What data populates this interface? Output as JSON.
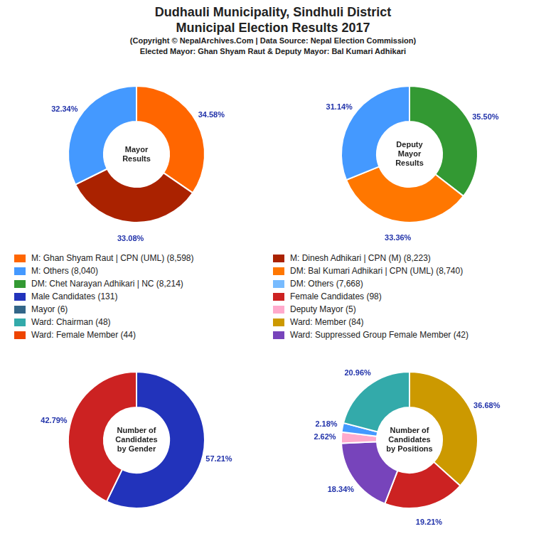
{
  "title": [
    "Dudhauli Municipality, Sindhuli District",
    "Municipal Election Results 2017"
  ],
  "subtitle": [
    "(Copyright © NepalArchives.Com | Data Source: Nepal Election Commission)",
    "Elected Mayor: Ghan Shyam Raut & Deputy Mayor: Bal Kumari Adhikari"
  ],
  "chart_data": [
    {
      "type": "doughnut",
      "title": "Mayor\nResults",
      "values": [
        34.58,
        33.08,
        32.34
      ],
      "value_labels": [
        "34.58%",
        "33.08%",
        "32.34%"
      ],
      "colors": [
        "#ff6600",
        "#aa2200",
        "#4499ff"
      ],
      "data_labels": true,
      "legend": false
    },
    {
      "type": "doughnut",
      "title": "Deputy\nMayor\nResults",
      "values": [
        35.5,
        33.36,
        31.14
      ],
      "value_labels": [
        "35.50%",
        "33.36%",
        "31.14%"
      ],
      "colors": [
        "#339933",
        "#ff7700",
        "#4499ff"
      ],
      "data_labels": true,
      "legend": false
    },
    {
      "type": "doughnut",
      "title": "Number of\nCandidates\nby Gender",
      "values": [
        57.21,
        42.79
      ],
      "value_labels": [
        "57.21%",
        "42.79%"
      ],
      "colors": [
        "#2233bb",
        "#cc2222"
      ],
      "data_labels": true,
      "legend": false
    },
    {
      "type": "doughnut",
      "title": "Number of\nCandidates\nby Positions",
      "values": [
        36.68,
        19.21,
        18.34,
        2.62,
        2.18,
        20.96
      ],
      "value_labels": [
        "36.68%",
        "19.21%",
        "18.34%",
        "2.62%",
        "2.18%",
        "20.96%"
      ],
      "colors": [
        "#cc9900",
        "#cc2222",
        "#7744bb",
        "#ffaacc",
        "#4499ff",
        "#33aaaa"
      ],
      "data_labels": true,
      "legend": false
    }
  ],
  "annotations": [
    {
      "text": "M: Ghan Shyam Raut | CPN (UML) (8,598)",
      "color": "#ff6600"
    },
    {
      "text": "M: Others (8,040)",
      "color": "#4499ff"
    },
    {
      "text": "DM: Chet Narayan Adhikari | NC (8,214)",
      "color": "#339933"
    },
    {
      "text": "Male Candidates (131)",
      "color": "#2233bb"
    },
    {
      "text": "Mayor (6)",
      "color": "#336688"
    },
    {
      "text": "Ward: Chairman (48)",
      "color": "#33aaaa"
    },
    {
      "text": "Ward: Female Member (44)",
      "color": "#ee4400"
    },
    {
      "text": "M: Dinesh Adhikari | CPN (M) (8,223)",
      "color": "#aa2200"
    },
    {
      "text": "DM: Bal Kumari Adhikari | CPN (UML) (8,740)",
      "color": "#ff7700"
    },
    {
      "text": "DM: Others (7,668)",
      "color": "#77bbff"
    },
    {
      "text": "Female Candidates (98)",
      "color": "#cc2222"
    },
    {
      "text": "Deputy Mayor (5)",
      "color": "#ffaacc"
    },
    {
      "text": "Ward: Member (84)",
      "color": "#cc9900"
    },
    {
      "text": "Ward: Suppressed Group Female Member (42)",
      "color": "#7744bb"
    }
  ]
}
